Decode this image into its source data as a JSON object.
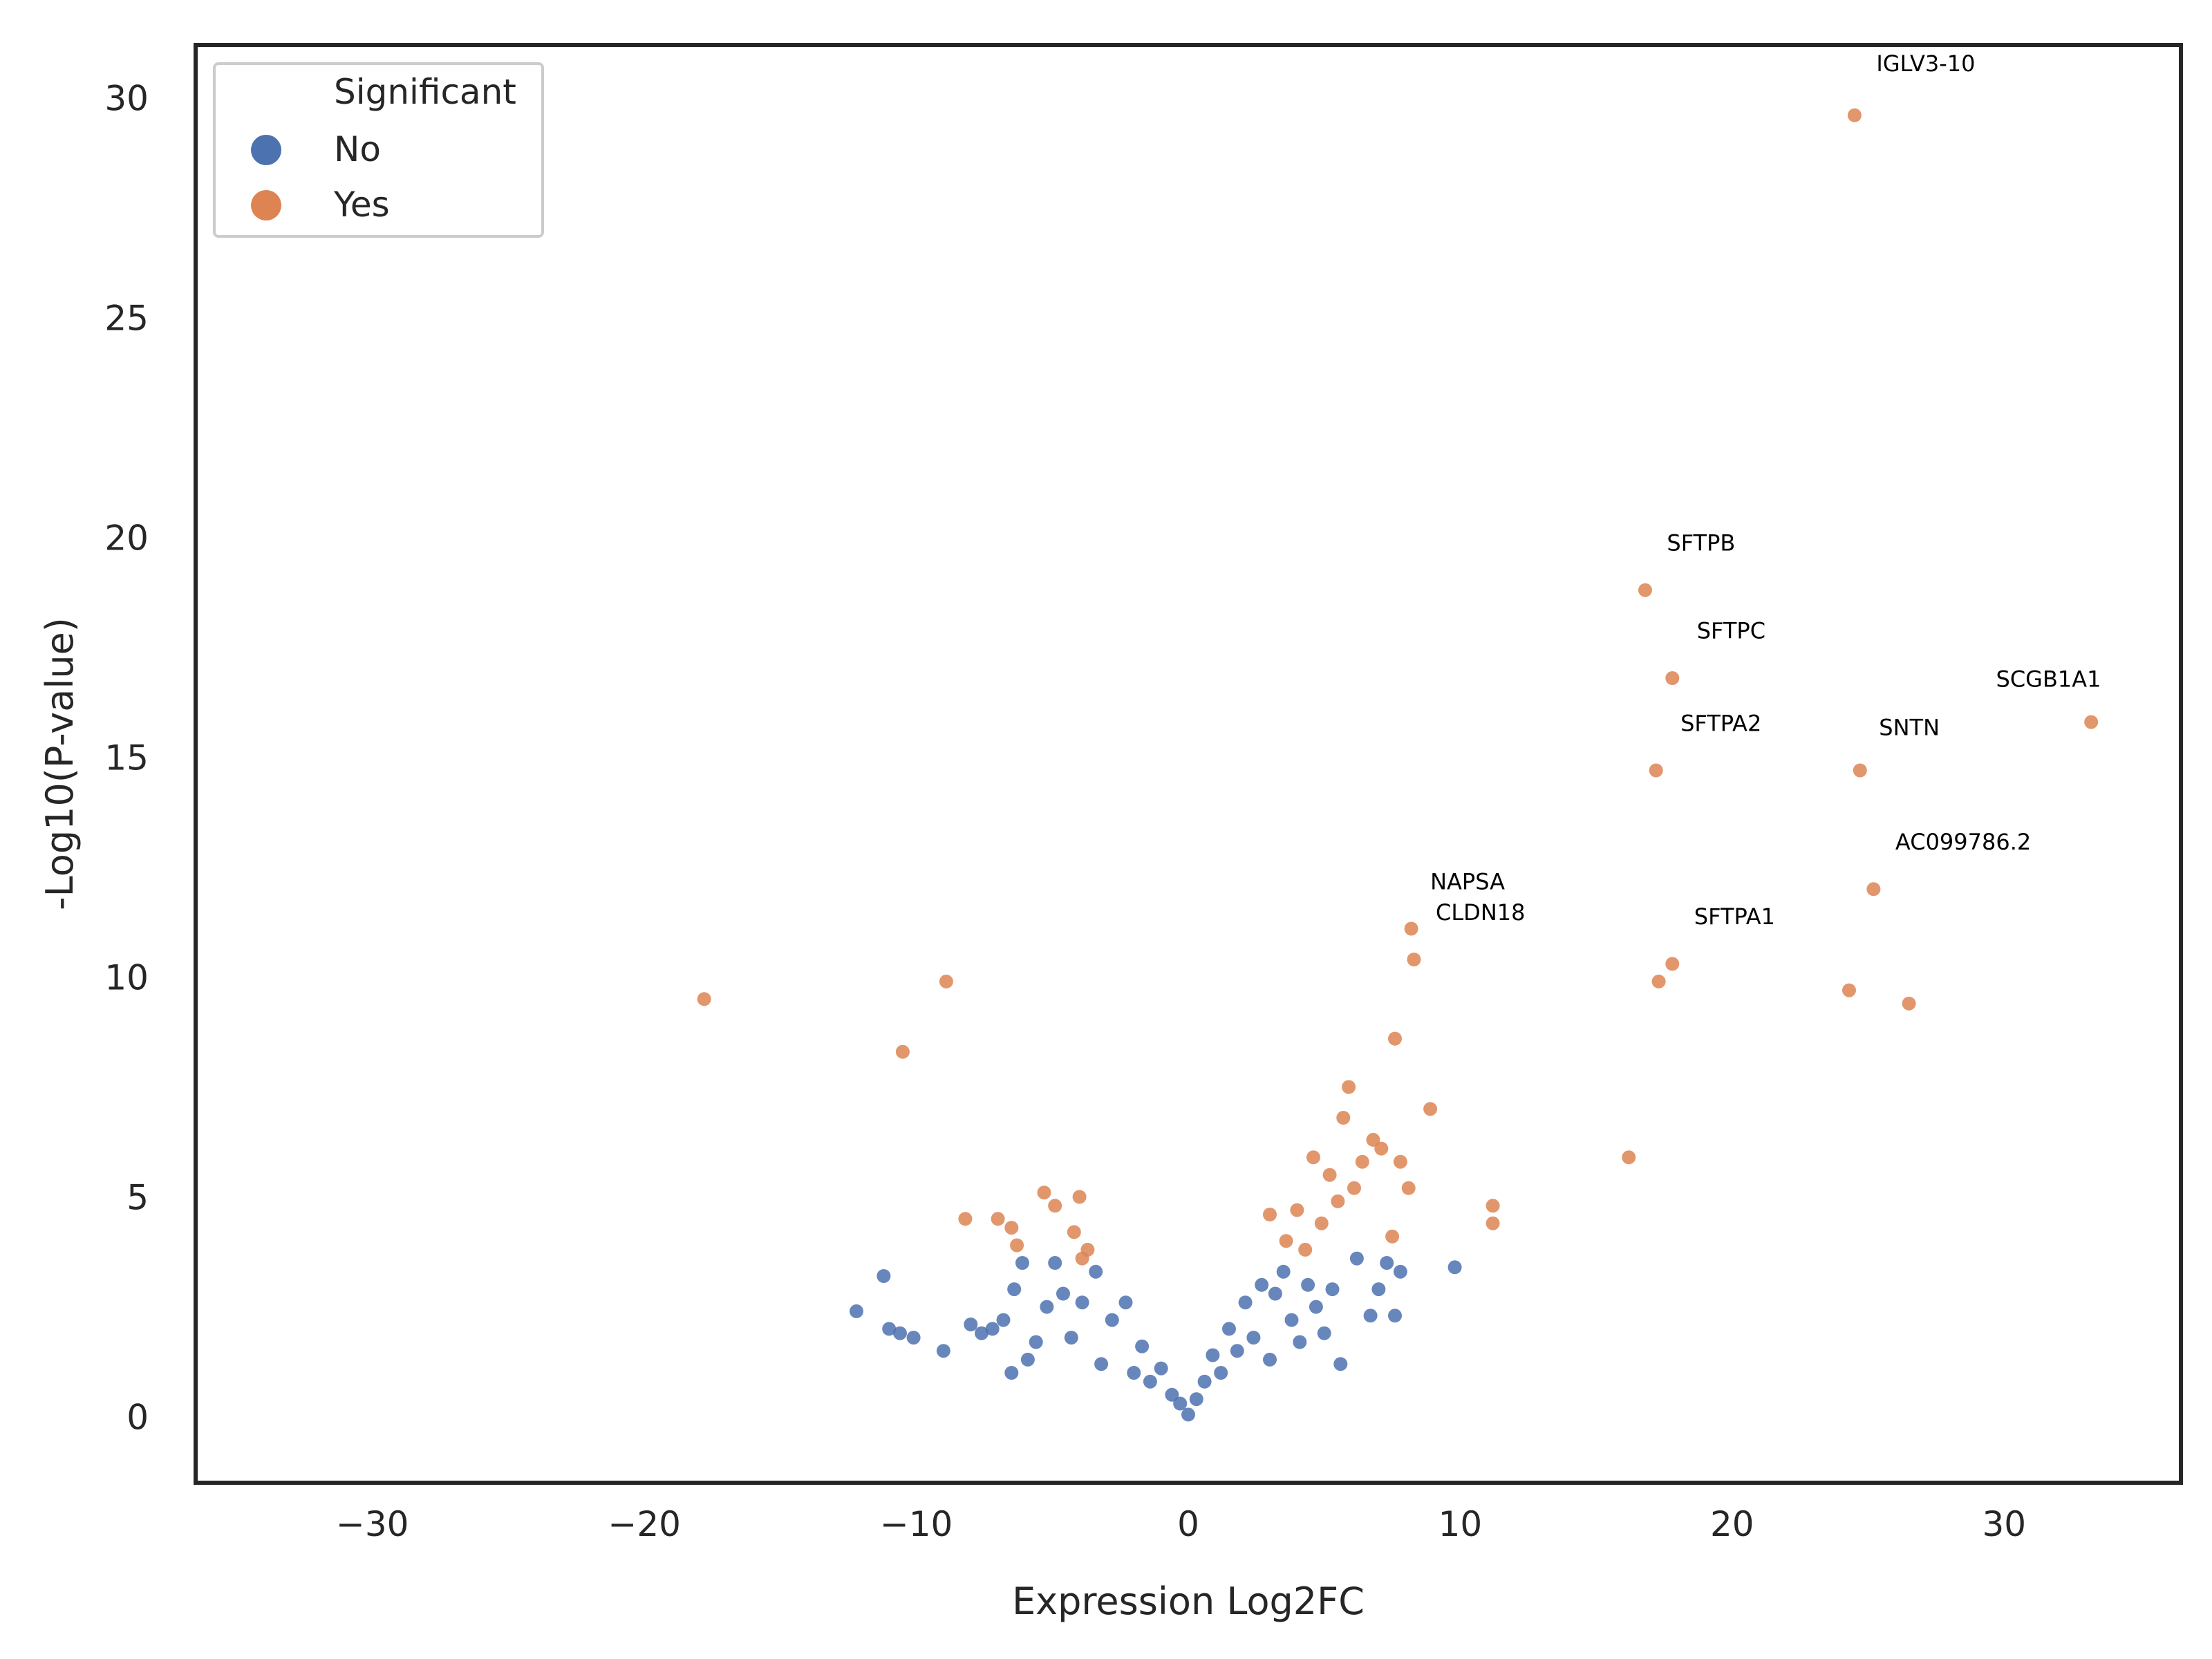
{
  "chart_data": {
    "type": "scatter",
    "title": "",
    "xlabel": "Expression Log2FC",
    "ylabel": "-Log10(P-value)",
    "xlim": [
      -36.5,
      36.5
    ],
    "ylim": [
      -1.5,
      31.2
    ],
    "x_ticks": [
      -30,
      -20,
      -10,
      0,
      10,
      20,
      30
    ],
    "y_ticks": [
      0,
      5,
      10,
      15,
      20,
      25,
      30
    ],
    "grid": false,
    "legend": {
      "title": "Significant",
      "placement": "top-left",
      "entries": [
        {
          "label": "No",
          "color": "#4c72b0"
        },
        {
          "label": "Yes",
          "color": "#dd8452"
        }
      ]
    },
    "series": [
      {
        "name": "No",
        "color": "#4c72b0",
        "points": [
          [
            -12.2,
            2.4
          ],
          [
            -11.2,
            3.2
          ],
          [
            -11.0,
            2.0
          ],
          [
            -10.6,
            1.9
          ],
          [
            -10.1,
            1.8
          ],
          [
            -9.0,
            1.5
          ],
          [
            -8.0,
            2.1
          ],
          [
            -7.6,
            1.9
          ],
          [
            -7.2,
            2.0
          ],
          [
            -6.8,
            2.2
          ],
          [
            -6.5,
            1.0
          ],
          [
            -6.4,
            2.9
          ],
          [
            -6.1,
            3.5
          ],
          [
            -5.9,
            1.3
          ],
          [
            -5.6,
            1.7
          ],
          [
            -5.2,
            2.5
          ],
          [
            -4.9,
            3.5
          ],
          [
            -4.6,
            2.8
          ],
          [
            -4.3,
            1.8
          ],
          [
            -3.9,
            2.6
          ],
          [
            -3.4,
            3.3
          ],
          [
            -3.2,
            1.2
          ],
          [
            -2.8,
            2.2
          ],
          [
            -2.3,
            2.6
          ],
          [
            -2.0,
            1.0
          ],
          [
            -1.7,
            1.6
          ],
          [
            -1.4,
            0.8
          ],
          [
            -1.0,
            1.1
          ],
          [
            -0.6,
            0.5
          ],
          [
            -0.3,
            0.3
          ],
          [
            0.0,
            0.05
          ],
          [
            0.3,
            0.4
          ],
          [
            0.6,
            0.8
          ],
          [
            0.9,
            1.4
          ],
          [
            1.2,
            1.0
          ],
          [
            1.5,
            2.0
          ],
          [
            1.8,
            1.5
          ],
          [
            2.1,
            2.6
          ],
          [
            2.4,
            1.8
          ],
          [
            2.7,
            3.0
          ],
          [
            3.0,
            1.3
          ],
          [
            3.2,
            2.8
          ],
          [
            3.5,
            3.3
          ],
          [
            3.8,
            2.2
          ],
          [
            4.1,
            1.7
          ],
          [
            4.4,
            3.0
          ],
          [
            4.7,
            2.5
          ],
          [
            5.0,
            1.9
          ],
          [
            5.3,
            2.9
          ],
          [
            5.6,
            1.2
          ],
          [
            6.2,
            3.6
          ],
          [
            6.7,
            2.3
          ],
          [
            7.0,
            2.9
          ],
          [
            7.3,
            3.5
          ],
          [
            7.6,
            2.3
          ],
          [
            7.8,
            3.3
          ],
          [
            9.8,
            3.4
          ]
        ]
      },
      {
        "name": "Yes",
        "color": "#dd8452",
        "points": [
          [
            -17.8,
            9.5
          ],
          [
            -10.5,
            8.3
          ],
          [
            -8.9,
            9.9
          ],
          [
            -8.2,
            4.5
          ],
          [
            -7.0,
            4.5
          ],
          [
            -6.5,
            4.3
          ],
          [
            -6.3,
            3.9
          ],
          [
            -5.3,
            5.1
          ],
          [
            -4.9,
            4.8
          ],
          [
            -4.2,
            4.2
          ],
          [
            -3.9,
            3.6
          ],
          [
            -3.7,
            3.8
          ],
          [
            -4.0,
            5.0
          ],
          [
            3.0,
            4.6
          ],
          [
            3.6,
            4.0
          ],
          [
            4.0,
            4.7
          ],
          [
            4.3,
            3.8
          ],
          [
            4.6,
            5.9
          ],
          [
            4.9,
            4.4
          ],
          [
            5.2,
            5.5
          ],
          [
            5.5,
            4.9
          ],
          [
            5.7,
            6.8
          ],
          [
            5.9,
            7.5
          ],
          [
            6.1,
            5.2
          ],
          [
            6.4,
            5.8
          ],
          [
            6.8,
            6.3
          ],
          [
            7.1,
            6.1
          ],
          [
            7.5,
            4.1
          ],
          [
            7.6,
            8.6
          ],
          [
            7.8,
            5.8
          ],
          [
            8.1,
            5.2
          ],
          [
            8.9,
            7.0
          ],
          [
            11.2,
            4.8
          ],
          [
            11.2,
            4.4
          ],
          [
            16.2,
            5.9
          ],
          [
            17.3,
            9.9
          ],
          [
            24.3,
            9.7
          ],
          [
            26.5,
            9.4
          ],
          [
            8.2,
            11.1
          ],
          [
            8.3,
            10.4
          ],
          [
            17.2,
            14.7
          ],
          [
            16.8,
            18.8
          ],
          [
            17.8,
            16.8
          ],
          [
            17.8,
            10.3
          ],
          [
            24.5,
            29.6
          ],
          [
            24.7,
            14.7
          ],
          [
            25.2,
            12.0
          ],
          [
            33.2,
            15.8
          ]
        ]
      }
    ],
    "annotations": [
      {
        "text": "IGLV3-10",
        "x": 25.3,
        "y": 30.6
      },
      {
        "text": "SFTPB",
        "x": 17.6,
        "y": 19.7
      },
      {
        "text": "SFTPC",
        "x": 18.7,
        "y": 17.7
      },
      {
        "text": "SCGB1A1",
        "x": 29.7,
        "y": 16.6
      },
      {
        "text": "SFTPA2",
        "x": 18.1,
        "y": 15.6
      },
      {
        "text": "SNTN",
        "x": 25.4,
        "y": 15.5
      },
      {
        "text": "AC099786.2",
        "x": 26.0,
        "y": 12.9
      },
      {
        "text": "NAPSA",
        "x": 8.9,
        "y": 12.0
      },
      {
        "text": "CLDN18",
        "x": 9.1,
        "y": 11.3
      },
      {
        "text": "SFTPA1",
        "x": 18.6,
        "y": 11.2
      }
    ]
  }
}
